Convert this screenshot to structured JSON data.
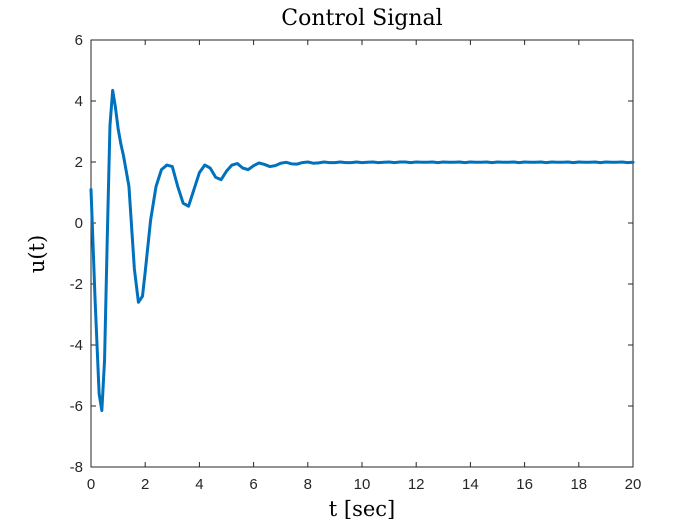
{
  "chart_data": {
    "type": "line",
    "title": "Control Signal",
    "xlabel": "t [sec]",
    "ylabel": "u(t)",
    "xlim": [
      0,
      20
    ],
    "ylim": [
      -8,
      6
    ],
    "xticks": [
      0,
      2,
      4,
      6,
      8,
      10,
      12,
      14,
      16,
      18,
      20
    ],
    "yticks": [
      -8,
      -6,
      -4,
      -2,
      0,
      2,
      4,
      6
    ],
    "grid": false,
    "line_color": "#0072BD",
    "series": [
      {
        "x": [
          0,
          0.15,
          0.3,
          0.4,
          0.5,
          0.6,
          0.7,
          0.8,
          0.9,
          1.0,
          1.1,
          1.2,
          1.4,
          1.6,
          1.75,
          1.9,
          2.0,
          2.2,
          2.4,
          2.6,
          2.8,
          3.0,
          3.2,
          3.4,
          3.6,
          3.8,
          4.0,
          4.2,
          4.4,
          4.6,
          4.8,
          5.0,
          5.2,
          5.4,
          5.6,
          5.8,
          6.0,
          6.2,
          6.4,
          6.6,
          6.8,
          7.0,
          7.2,
          7.4,
          7.6,
          7.8,
          8.0,
          8.2,
          8.4,
          8.6,
          8.8,
          9.0,
          9.2,
          9.4,
          9.6,
          9.8,
          10.0,
          10.2,
          10.4,
          10.6,
          10.8,
          11.0,
          11.2,
          11.4,
          11.6,
          11.8,
          12.0,
          12.2,
          12.4,
          12.6,
          12.8,
          13.0,
          13.2,
          13.4,
          13.6,
          13.8,
          14.0,
          14.2,
          14.4,
          14.6,
          14.8,
          15.0,
          15.2,
          15.4,
          15.6,
          15.8,
          16.0,
          16.2,
          16.4,
          16.6,
          16.8,
          17.0,
          17.2,
          17.4,
          17.6,
          17.8,
          18.0,
          18.2,
          18.4,
          18.6,
          18.8,
          19.0,
          19.2,
          19.4,
          19.6,
          19.8,
          20.0
        ],
        "y": [
          1.1,
          -2.5,
          -5.6,
          -6.15,
          -4.5,
          -0.5,
          3.2,
          4.35,
          3.8,
          3.1,
          2.6,
          2.2,
          1.2,
          -1.5,
          -2.6,
          -2.4,
          -1.6,
          0.1,
          1.2,
          1.75,
          1.9,
          1.85,
          1.2,
          0.65,
          0.55,
          1.1,
          1.65,
          1.9,
          1.8,
          1.5,
          1.42,
          1.7,
          1.9,
          1.95,
          1.8,
          1.75,
          1.88,
          1.97,
          1.92,
          1.85,
          1.88,
          1.96,
          1.99,
          1.94,
          1.93,
          1.98,
          2.0,
          1.96,
          1.97,
          2.0,
          1.98,
          1.98,
          2.0,
          1.98,
          1.98,
          2.0,
          1.98,
          1.99,
          2.0,
          1.98,
          1.99,
          2.0,
          1.98,
          2.0,
          2.0,
          1.98,
          2.0,
          1.99,
          1.99,
          2.0,
          1.98,
          2.0,
          1.99,
          1.99,
          2.0,
          1.98,
          2.0,
          1.99,
          1.99,
          2.0,
          1.98,
          2.0,
          1.99,
          1.99,
          2.0,
          1.98,
          2.0,
          1.99,
          1.99,
          2.0,
          1.98,
          2.0,
          1.99,
          1.99,
          2.0,
          1.98,
          2.0,
          1.99,
          1.99,
          2.0,
          1.98,
          2.0,
          1.99,
          1.99,
          2.0,
          1.98,
          1.99
        ]
      }
    ]
  }
}
